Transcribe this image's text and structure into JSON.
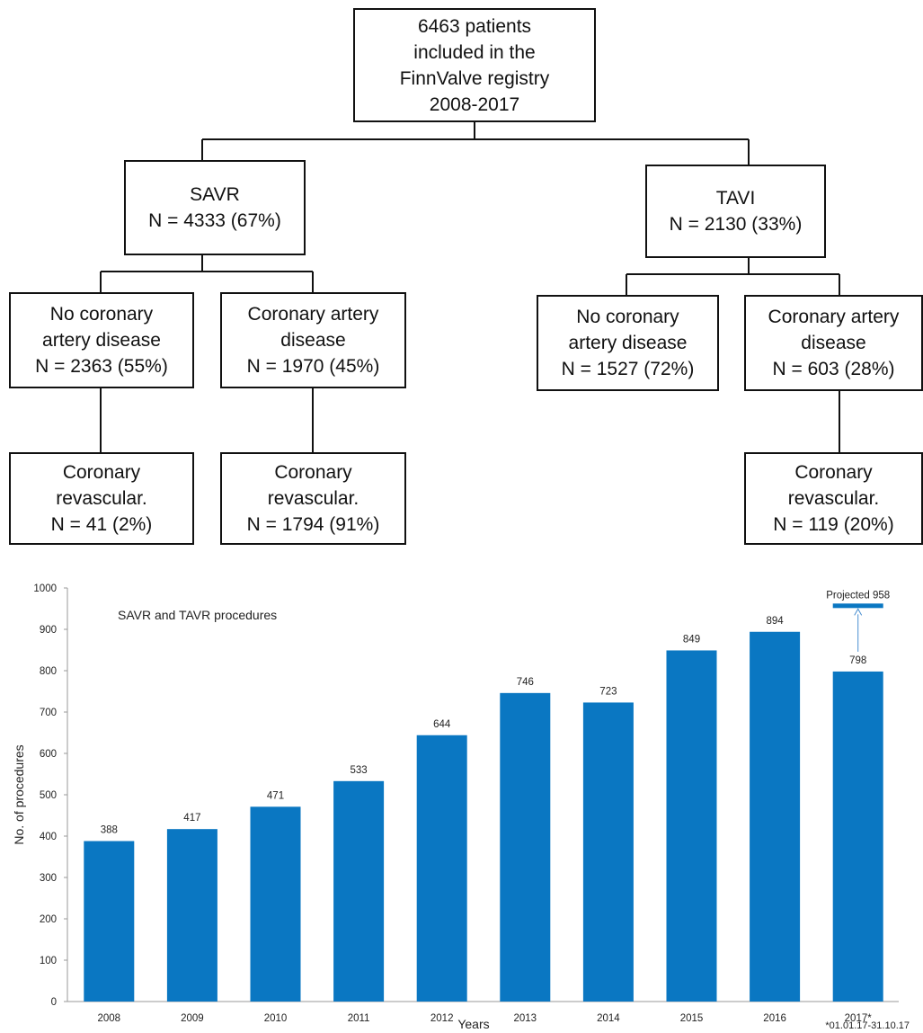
{
  "flowchart": {
    "root": [
      "6463 patients",
      "included in the",
      "FinnValve registry",
      "2008-2017"
    ],
    "savr": [
      "SAVR",
      "N = 4333 (67%)"
    ],
    "tavi": [
      "TAVI",
      "N = 2130 (33%)"
    ],
    "savr_no_cad": [
      "No coronary",
      "artery disease",
      "N = 2363 (55%)"
    ],
    "savr_cad": [
      "Coronary artery",
      "disease",
      "N = 1970 (45%)"
    ],
    "tavi_no_cad": [
      "No coronary",
      "artery disease",
      "N = 1527 (72%)"
    ],
    "tavi_cad": [
      "Coronary artery",
      "disease",
      "N = 603 (28%)"
    ],
    "savr_no_cad_revasc": [
      "Coronary",
      "revascular.",
      "N = 41 (2%)"
    ],
    "savr_cad_revasc": [
      "Coronary",
      "revascular.",
      "N = 1794 (91%)"
    ],
    "tavi_cad_revasc": [
      "Coronary",
      "revascular.",
      "N = 119 (20%)"
    ]
  },
  "chart_data": {
    "type": "bar",
    "title": "SAVR and TAVR procedures",
    "xlabel": "Years",
    "ylabel": "No. of procedures",
    "categories": [
      "2008",
      "2009",
      "2010",
      "2011",
      "2012",
      "2013",
      "2014",
      "2015",
      "2016",
      "2017*"
    ],
    "values": [
      388,
      417,
      471,
      533,
      644,
      746,
      723,
      849,
      894,
      798
    ],
    "value_labels": [
      "388",
      "417",
      "471",
      "533",
      "644",
      "746",
      "723",
      "849",
      "894",
      "798"
    ],
    "ylim": [
      0,
      1000
    ],
    "yticks": [
      "0",
      "100",
      "200",
      "300",
      "400",
      "500",
      "600",
      "700",
      "800",
      "900",
      "1000"
    ],
    "grid": false,
    "bar_color": "#0a77c2",
    "projection": {
      "category": "2017*",
      "value": 958,
      "label": "Projected 958"
    },
    "footnote": "*01.01.17-31.10.17"
  }
}
